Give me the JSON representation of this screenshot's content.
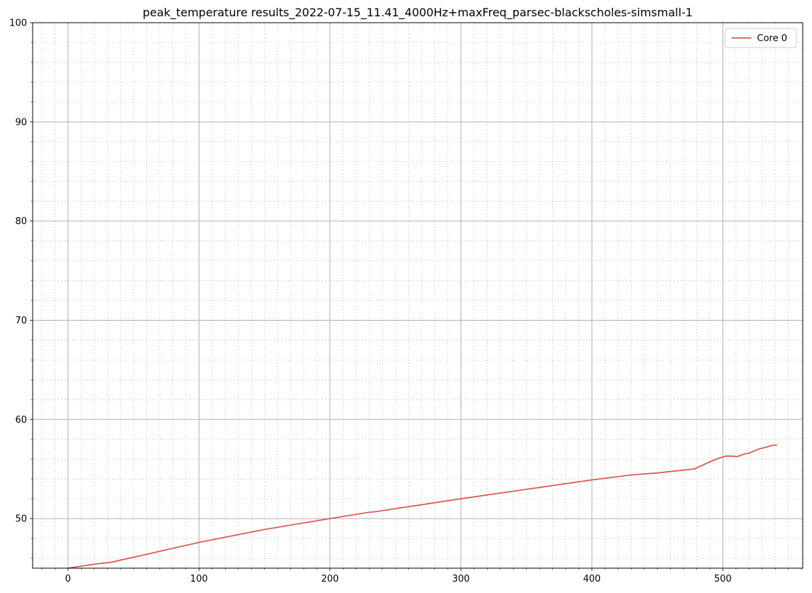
{
  "chart_data": {
    "type": "line",
    "title": "peak_temperature results_2022-07-15_11.41_4000Hz+maxFreq_parsec-blackscholes-simsmall-1",
    "xlabel": "",
    "ylabel": "",
    "xlim": [
      -27,
      561
    ],
    "ylim": [
      45,
      100
    ],
    "x_ticks": [
      0,
      100,
      200,
      300,
      400,
      500
    ],
    "y_ticks": [
      50,
      60,
      70,
      80,
      90,
      100
    ],
    "x_minor_step": 10,
    "y_minor_step": 2,
    "grid": true,
    "minor_grid": true,
    "legend_position": "top-right",
    "series": [
      {
        "name": "Core 0",
        "color": "#d9534f",
        "x": [
          0,
          10,
          20,
          33,
          60,
          100,
          150,
          200,
          228,
          235,
          275,
          300,
          350,
          400,
          430,
          450,
          474,
          478,
          488,
          495,
          502,
          506,
          511,
          516,
          520,
          527,
          533,
          538,
          541
        ],
        "y": [
          45.0,
          45.2,
          45.4,
          45.6,
          46.4,
          47.6,
          48.9,
          50.0,
          50.6,
          50.7,
          51.5,
          52.0,
          52.95,
          53.9,
          54.4,
          54.6,
          54.95,
          55.0,
          55.6,
          56.0,
          56.3,
          56.3,
          56.25,
          56.5,
          56.6,
          57.0,
          57.2,
          57.4,
          57.4
        ]
      }
    ]
  }
}
